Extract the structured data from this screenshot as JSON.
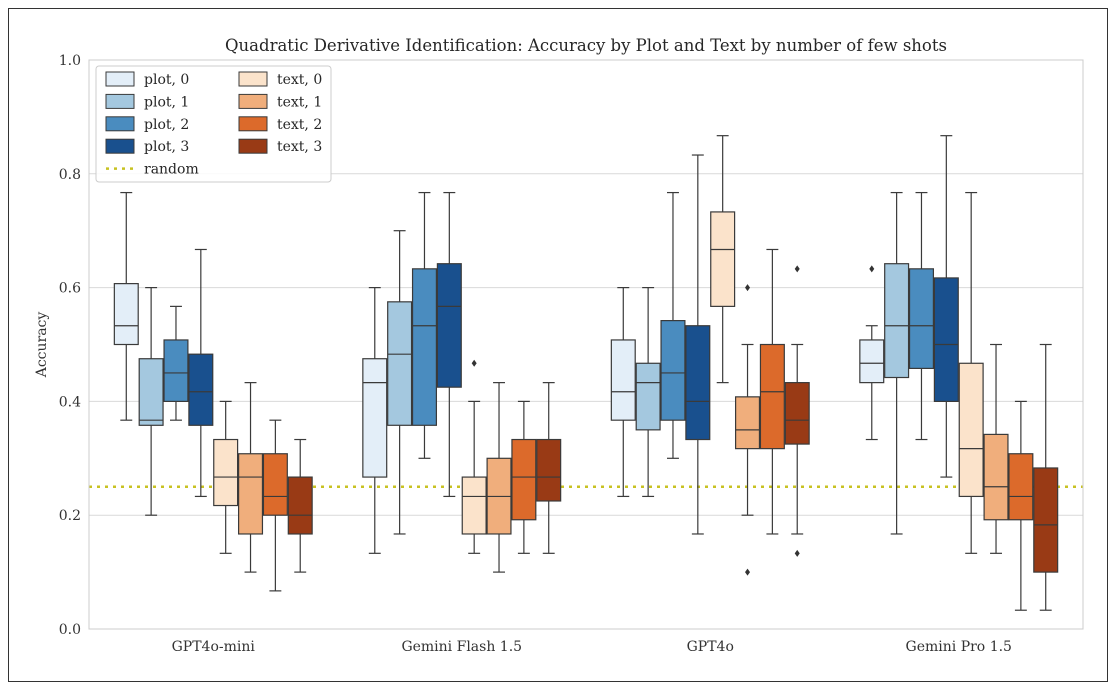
{
  "chart_data": {
    "type": "box",
    "title": "Quadratic Derivative Identification: Accuracy by Plot and Text by number of few shots",
    "xlabel": "",
    "ylabel": "Accuracy",
    "ylim": [
      0,
      1.0
    ],
    "yticks": [
      0.0,
      0.2,
      0.4,
      0.6,
      0.8,
      1.0
    ],
    "ytick_labels": [
      "0.0",
      "0.2",
      "0.4",
      "0.6",
      "0.8",
      "1.0"
    ],
    "grid": true,
    "legend_position": "upper-left",
    "categories": [
      "GPT4o-mini",
      "Gemini Flash 1.5",
      "GPT4o",
      "Gemini Pro 1.5"
    ],
    "random_baseline": {
      "name": "random",
      "value": 0.25,
      "color": "#c8c222"
    },
    "series": [
      {
        "name": "plot, 0",
        "color": "#e3eef8",
        "boxes": [
          {
            "min": 0.367,
            "q1": 0.5,
            "median": 0.533,
            "q3": 0.607,
            "max": 0.767,
            "outliers": []
          },
          {
            "min": 0.133,
            "q1": 0.267,
            "median": 0.433,
            "q3": 0.475,
            "max": 0.6,
            "outliers": []
          },
          {
            "min": 0.233,
            "q1": 0.367,
            "median": 0.417,
            "q3": 0.508,
            "max": 0.6,
            "outliers": []
          },
          {
            "min": 0.333,
            "q1": 0.433,
            "median": 0.467,
            "q3": 0.508,
            "max": 0.533,
            "outliers": [
              0.633
            ]
          }
        ]
      },
      {
        "name": "plot, 1",
        "color": "#a4c8df",
        "boxes": [
          {
            "min": 0.2,
            "q1": 0.358,
            "median": 0.367,
            "q3": 0.475,
            "max": 0.6,
            "outliers": []
          },
          {
            "min": 0.167,
            "q1": 0.358,
            "median": 0.483,
            "q3": 0.575,
            "max": 0.7,
            "outliers": []
          },
          {
            "min": 0.233,
            "q1": 0.35,
            "median": 0.433,
            "q3": 0.467,
            "max": 0.6,
            "outliers": []
          },
          {
            "min": 0.167,
            "q1": 0.442,
            "median": 0.533,
            "q3": 0.642,
            "max": 0.767,
            "outliers": []
          }
        ]
      },
      {
        "name": "plot, 2",
        "color": "#4a8cbf",
        "boxes": [
          {
            "min": 0.367,
            "q1": 0.4,
            "median": 0.45,
            "q3": 0.508,
            "max": 0.567,
            "outliers": []
          },
          {
            "min": 0.3,
            "q1": 0.358,
            "median": 0.533,
            "q3": 0.633,
            "max": 0.767,
            "outliers": []
          },
          {
            "min": 0.3,
            "q1": 0.367,
            "median": 0.45,
            "q3": 0.542,
            "max": 0.767,
            "outliers": []
          },
          {
            "min": 0.333,
            "q1": 0.458,
            "median": 0.533,
            "q3": 0.633,
            "max": 0.767,
            "outliers": []
          }
        ]
      },
      {
        "name": "plot, 3",
        "color": "#19508e",
        "boxes": [
          {
            "min": 0.233,
            "q1": 0.358,
            "median": 0.417,
            "q3": 0.483,
            "max": 0.667,
            "outliers": []
          },
          {
            "min": 0.233,
            "q1": 0.425,
            "median": 0.567,
            "q3": 0.642,
            "max": 0.767,
            "outliers": []
          },
          {
            "min": 0.167,
            "q1": 0.333,
            "median": 0.4,
            "q3": 0.533,
            "max": 0.833,
            "outliers": []
          },
          {
            "min": 0.267,
            "q1": 0.4,
            "median": 0.5,
            "q3": 0.617,
            "max": 0.867,
            "outliers": []
          }
        ]
      },
      {
        "name": "text, 0",
        "color": "#fbe3cb",
        "boxes": [
          {
            "min": 0.133,
            "q1": 0.217,
            "median": 0.267,
            "q3": 0.333,
            "max": 0.4,
            "outliers": []
          },
          {
            "min": 0.133,
            "q1": 0.167,
            "median": 0.233,
            "q3": 0.267,
            "max": 0.4,
            "outliers": [
              0.467
            ]
          },
          {
            "min": 0.433,
            "q1": 0.567,
            "median": 0.667,
            "q3": 0.733,
            "max": 0.867,
            "outliers": []
          },
          {
            "min": 0.133,
            "q1": 0.233,
            "median": 0.317,
            "q3": 0.467,
            "max": 0.767,
            "outliers": []
          }
        ]
      },
      {
        "name": "text, 1",
        "color": "#f0ae7c",
        "boxes": [
          {
            "min": 0.1,
            "q1": 0.167,
            "median": 0.267,
            "q3": 0.308,
            "max": 0.433,
            "outliers": []
          },
          {
            "min": 0.1,
            "q1": 0.167,
            "median": 0.233,
            "q3": 0.3,
            "max": 0.433,
            "outliers": []
          },
          {
            "min": 0.2,
            "q1": 0.317,
            "median": 0.35,
            "q3": 0.408,
            "max": 0.5,
            "outliers": [
              0.6,
              0.1
            ]
          },
          {
            "min": 0.133,
            "q1": 0.192,
            "median": 0.25,
            "q3": 0.342,
            "max": 0.5,
            "outliers": []
          }
        ]
      },
      {
        "name": "text, 2",
        "color": "#dc6a2b",
        "boxes": [
          {
            "min": 0.067,
            "q1": 0.2,
            "median": 0.233,
            "q3": 0.308,
            "max": 0.367,
            "outliers": []
          },
          {
            "min": 0.133,
            "q1": 0.192,
            "median": 0.267,
            "q3": 0.333,
            "max": 0.4,
            "outliers": []
          },
          {
            "min": 0.167,
            "q1": 0.317,
            "median": 0.417,
            "q3": 0.5,
            "max": 0.667,
            "outliers": []
          },
          {
            "min": 0.033,
            "q1": 0.192,
            "median": 0.233,
            "q3": 0.308,
            "max": 0.4,
            "outliers": []
          }
        ]
      },
      {
        "name": "text, 3",
        "color": "#993a15",
        "boxes": [
          {
            "min": 0.1,
            "q1": 0.167,
            "median": 0.2,
            "q3": 0.267,
            "max": 0.333,
            "outliers": []
          },
          {
            "min": 0.133,
            "q1": 0.225,
            "median": 0.267,
            "q3": 0.333,
            "max": 0.433,
            "outliers": []
          },
          {
            "min": 0.167,
            "q1": 0.325,
            "median": 0.367,
            "q3": 0.433,
            "max": 0.5,
            "outliers": [
              0.633,
              0.133
            ]
          },
          {
            "min": 0.033,
            "q1": 0.1,
            "median": 0.183,
            "q3": 0.283,
            "max": 0.5,
            "outliers": []
          }
        ]
      }
    ]
  }
}
